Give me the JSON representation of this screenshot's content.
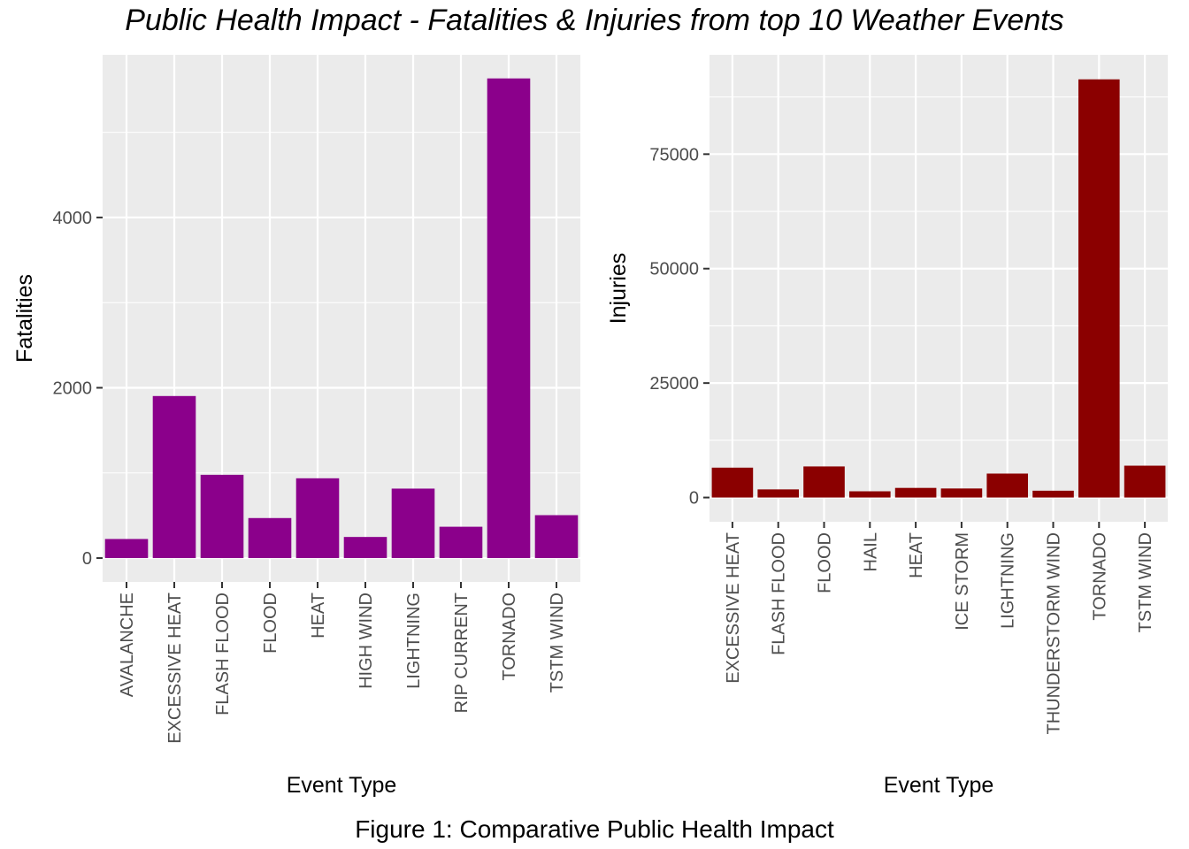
{
  "title": "Public Health Impact - Fatalities & Injuries from top 10 Weather Events",
  "caption": "Figure 1: Comparative Public Health Impact",
  "chart_data": [
    {
      "type": "bar",
      "categories": [
        "AVALANCHE",
        "EXCESSIVE HEAT",
        "FLASH FLOOD",
        "FLOOD",
        "HEAT",
        "HIGH WIND",
        "LIGHTNING",
        "RIP CURRENT",
        "TORNADO",
        "TSTM WIND"
      ],
      "values": [
        224,
        1903,
        978,
        470,
        937,
        248,
        816,
        368,
        5633,
        504
      ],
      "xlabel": "Event Type",
      "ylabel": "Fatalities",
      "ylim": [
        -280,
        5910
      ],
      "yticks": [
        0,
        2000,
        4000
      ],
      "color": "#8b008b",
      "panel_color": "#ebebeb",
      "grid": true
    },
    {
      "type": "bar",
      "categories": [
        "EXCESSIVE HEAT",
        "FLASH FLOOD",
        "FLOOD",
        "HAIL",
        "HEAT",
        "ICE STORM",
        "LIGHTNING",
        "THUNDERSTORM WIND",
        "TORNADO",
        "TSTM WIND"
      ],
      "values": [
        6525,
        1777,
        6789,
        1361,
        2100,
        1975,
        5230,
        1488,
        91346,
        6957
      ],
      "xlabel": "Event Type",
      "ylabel": "Injuries",
      "ylim": [
        -5300,
        96700
      ],
      "yticks": [
        0,
        25000,
        50000,
        75000
      ],
      "color": "#8b0000",
      "panel_color": "#ebebeb",
      "grid": true
    }
  ]
}
